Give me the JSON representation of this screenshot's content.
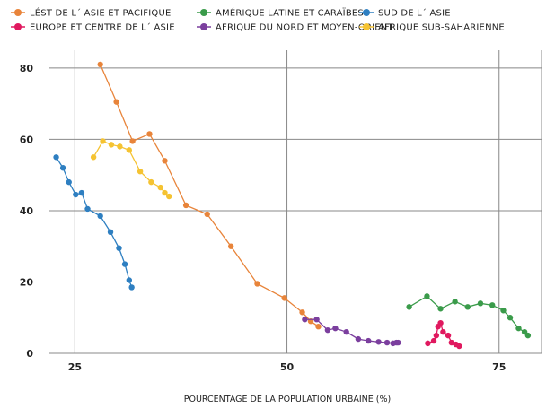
{
  "chart_data": {
    "type": "line",
    "title": "",
    "xlabel": "POURCENTAGE DE LA POPULATION URBAINE (%)",
    "ylabel": "",
    "xlim": [
      22,
      80
    ],
    "ylim": [
      0,
      85
    ],
    "x_ticks": [
      25,
      50,
      75
    ],
    "y_ticks": [
      0,
      20,
      40,
      60,
      80
    ],
    "grid": "both",
    "legend_position": "top",
    "series": [
      {
        "name": "LÉST DE L´ ASIE ET PACIFIQUE",
        "color": "#e8843a",
        "points": [
          [
            28,
            81
          ],
          [
            29.9,
            70.5
          ],
          [
            31.8,
            59.5
          ],
          [
            33.8,
            61.5
          ],
          [
            35.6,
            54
          ],
          [
            38.1,
            41.5
          ],
          [
            40.6,
            39
          ],
          [
            43.4,
            30
          ],
          [
            46.5,
            19.5
          ],
          [
            49.7,
            15.5
          ],
          [
            51.8,
            11.5
          ],
          [
            52.8,
            9
          ],
          [
            53.7,
            7.5
          ]
        ]
      },
      {
        "name": "AMÉRIQUE LATINE ET CARAÏBES",
        "color": "#3a9b4a",
        "points": [
          [
            64.4,
            13
          ],
          [
            66.5,
            16
          ],
          [
            68.1,
            12.5
          ],
          [
            69.8,
            14.5
          ],
          [
            71.3,
            13
          ],
          [
            72.8,
            14
          ],
          [
            74.2,
            13.5
          ],
          [
            75.5,
            12
          ],
          [
            76.3,
            10
          ],
          [
            77.3,
            7
          ],
          [
            78,
            6
          ],
          [
            78.4,
            5
          ]
        ]
      },
      {
        "name": "SUD DE L´ ASIE",
        "color": "#2e7fc1",
        "points": [
          [
            22.8,
            55
          ],
          [
            23.6,
            52
          ],
          [
            24.3,
            48
          ],
          [
            25.1,
            44.5
          ],
          [
            25.8,
            45
          ],
          [
            26.5,
            40.5
          ],
          [
            28,
            38.5
          ],
          [
            29.2,
            34
          ],
          [
            30.2,
            29.5
          ],
          [
            30.9,
            25
          ],
          [
            31.4,
            20.5
          ],
          [
            31.7,
            18.5
          ]
        ]
      },
      {
        "name": "EUROPE ET CENTRE DE L´ ASIE",
        "color": "#e0195f",
        "points": [
          [
            66.6,
            2.8
          ],
          [
            67.3,
            3.5
          ],
          [
            67.6,
            5
          ],
          [
            67.8,
            7.5
          ],
          [
            68.1,
            8.5
          ],
          [
            68.4,
            6
          ],
          [
            69,
            5
          ],
          [
            69.4,
            3
          ],
          [
            69.9,
            2.5
          ],
          [
            70.3,
            2
          ]
        ]
      },
      {
        "name": "AFRIQUE DU NORD ET MOYEN-ORIENT",
        "color": "#7b3f9e",
        "points": [
          [
            52.1,
            9.5
          ],
          [
            53.5,
            9.5
          ],
          [
            54.8,
            6.5
          ],
          [
            55.7,
            7
          ],
          [
            57,
            6
          ],
          [
            58.4,
            4
          ],
          [
            59.6,
            3.5
          ],
          [
            60.8,
            3.2
          ],
          [
            61.8,
            3
          ],
          [
            62.5,
            2.8
          ],
          [
            62.9,
            3
          ],
          [
            63.1,
            3
          ]
        ]
      },
      {
        "name": "AFRIQUE SUB-SAHARIENNE",
        "color": "#f5c332",
        "points": [
          [
            27.2,
            55
          ],
          [
            28.3,
            59.5
          ],
          [
            29.3,
            58.5
          ],
          [
            30.3,
            58
          ],
          [
            31.4,
            57
          ],
          [
            32.7,
            51
          ],
          [
            34,
            48
          ],
          [
            35.1,
            46.5
          ],
          [
            35.6,
            45
          ],
          [
            36.1,
            44
          ]
        ]
      }
    ]
  }
}
